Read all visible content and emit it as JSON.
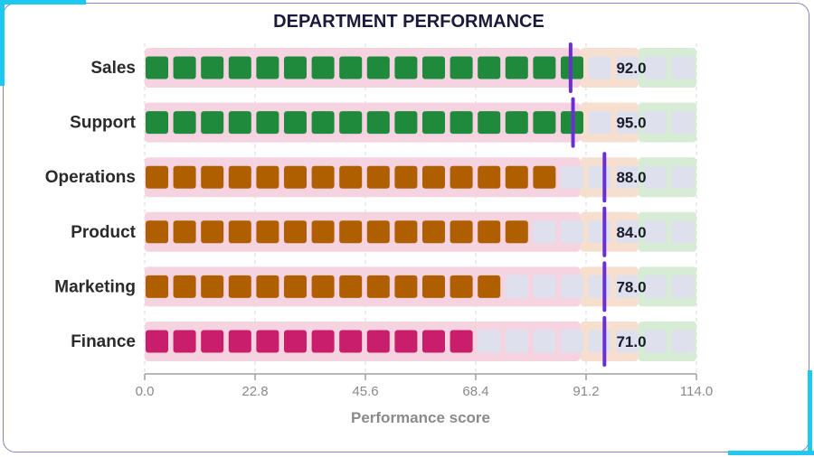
{
  "chart_data": {
    "type": "bar",
    "title": "DEPARTMENT PERFORMANCE",
    "xlabel": "Performance score",
    "xlim": [
      0,
      114
    ],
    "xticks": [
      "0.0",
      "22.8",
      "45.6",
      "68.4",
      "91.2",
      "114.0"
    ],
    "categories": [
      "Sales",
      "Support",
      "Operations",
      "Product",
      "Marketing",
      "Finance"
    ],
    "values": [
      92.0,
      95.0,
      88.0,
      84.0,
      78.0,
      71.0
    ],
    "value_labels": [
      "92.0",
      "95.0",
      "88.0",
      "84.0",
      "78.0",
      "71.0"
    ],
    "targets": [
      88,
      88.5,
      95,
      95,
      95,
      95
    ],
    "bands": [
      90,
      102,
      114
    ],
    "band_colors": [
      "#f6d3e0",
      "#f7dfd0",
      "#d6ecd4"
    ],
    "bar_colors": [
      "#208a3c",
      "#208a3c",
      "#b05f00",
      "#b05f00",
      "#b05f00",
      "#c81e6b"
    ],
    "empty_cell_color": "#dfe0ee",
    "target_color": "#6a2fd3",
    "grid": true
  }
}
